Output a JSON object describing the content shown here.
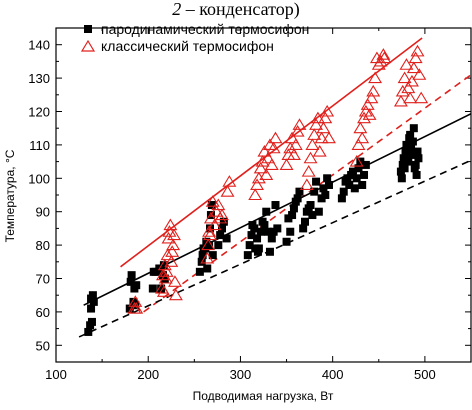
{
  "caption": {
    "number": "2",
    "text": " – конденсатор)"
  },
  "chart_data": {
    "type": "scatter",
    "xlabel": "Подводимая нагрузка, Вт",
    "ylabel": "Температура, °C",
    "xlim": [
      100,
      550
    ],
    "ylim": [
      45,
      145
    ],
    "xticks": [
      "100",
      "200",
      "300",
      "400",
      "500"
    ],
    "yticks": [
      "50",
      "60",
      "70",
      "80",
      "90",
      "100",
      "110",
      "120",
      "130",
      "140"
    ],
    "legend_position": "top-center",
    "series": [
      {
        "name": "пародинамический термосифон",
        "color": "#000000",
        "marker": "filled-square",
        "points": [
          [
            135,
            54
          ],
          [
            137,
            56
          ],
          [
            138,
            61
          ],
          [
            139,
            57
          ],
          [
            138,
            64
          ],
          [
            140,
            65
          ],
          [
            141,
            63
          ],
          [
            180,
            61
          ],
          [
            181,
            69
          ],
          [
            182,
            71
          ],
          [
            184,
            63
          ],
          [
            186,
            62
          ],
          [
            185,
            67
          ],
          [
            187,
            68
          ],
          [
            205,
            67
          ],
          [
            206,
            72
          ],
          [
            208,
            72
          ],
          [
            212,
            73
          ],
          [
            214,
            67
          ],
          [
            216,
            71
          ],
          [
            218,
            70
          ],
          [
            217,
            74
          ],
          [
            256,
            72
          ],
          [
            258,
            75
          ],
          [
            259,
            77
          ],
          [
            260,
            79
          ],
          [
            262,
            79
          ],
          [
            263,
            81
          ],
          [
            264,
            73
          ],
          [
            266,
            80
          ],
          [
            267,
            85
          ],
          [
            268,
            89
          ],
          [
            269,
            92
          ],
          [
            270,
            77
          ],
          [
            276,
            80
          ],
          [
            278,
            83
          ],
          [
            280,
            85
          ],
          [
            282,
            87
          ],
          [
            285,
            82
          ],
          [
            308,
            77
          ],
          [
            310,
            80
          ],
          [
            312,
            83
          ],
          [
            313,
            86
          ],
          [
            315,
            85
          ],
          [
            316,
            79
          ],
          [
            318,
            82
          ],
          [
            319,
            78
          ],
          [
            320,
            79
          ],
          [
            322,
            84
          ],
          [
            324,
            87
          ],
          [
            326,
            86
          ],
          [
            328,
            90
          ],
          [
            330,
            84
          ],
          [
            332,
            78
          ],
          [
            334,
            82
          ],
          [
            336,
            84
          ],
          [
            338,
            92
          ],
          [
            340,
            85
          ],
          [
            350,
            81
          ],
          [
            352,
            88
          ],
          [
            354,
            84
          ],
          [
            356,
            89
          ],
          [
            358,
            91
          ],
          [
            360,
            93
          ],
          [
            362,
            94
          ],
          [
            364,
            96
          ],
          [
            368,
            85
          ],
          [
            370,
            87
          ],
          [
            372,
            90
          ],
          [
            374,
            91
          ],
          [
            376,
            92
          ],
          [
            378,
            89
          ],
          [
            380,
            96
          ],
          [
            382,
            99
          ],
          [
            385,
            90
          ],
          [
            388,
            94
          ],
          [
            390,
            97
          ],
          [
            392,
            95
          ],
          [
            394,
            100
          ],
          [
            396,
            98
          ],
          [
            410,
            94
          ],
          [
            412,
            96
          ],
          [
            414,
            99
          ],
          [
            416,
            100
          ],
          [
            418,
            98
          ],
          [
            420,
            101
          ],
          [
            422,
            102
          ],
          [
            424,
            97
          ],
          [
            426,
            100
          ],
          [
            428,
            103
          ],
          [
            430,
            105
          ],
          [
            432,
            98
          ],
          [
            434,
            101
          ],
          [
            436,
            104
          ],
          [
            474,
            102
          ],
          [
            475,
            100
          ],
          [
            476,
            104
          ],
          [
            477,
            106
          ],
          [
            478,
            103
          ],
          [
            479,
            108
          ],
          [
            480,
            110
          ],
          [
            481,
            107
          ],
          [
            482,
            105
          ],
          [
            483,
            112
          ],
          [
            484,
            113
          ],
          [
            485,
            109
          ],
          [
            486,
            107
          ],
          [
            487,
            111
          ],
          [
            488,
            115
          ],
          [
            489,
            103
          ],
          [
            490,
            104
          ],
          [
            491,
            101
          ],
          [
            492,
            108
          ],
          [
            493,
            106
          ]
        ]
      },
      {
        "name": "классический термосифон",
        "color": "#e0201c",
        "marker": "open-triangle",
        "points": [
          [
            185,
            61
          ],
          [
            186,
            63
          ],
          [
            187,
            61
          ],
          [
            215,
            67
          ],
          [
            216,
            71
          ],
          [
            217,
            66
          ],
          [
            218,
            74
          ],
          [
            219,
            70
          ],
          [
            220,
            72
          ],
          [
            221,
            77
          ],
          [
            222,
            82
          ],
          [
            223,
            84
          ],
          [
            224,
            86
          ],
          [
            225,
            75
          ],
          [
            226,
            78
          ],
          [
            227,
            80
          ],
          [
            228,
            83
          ],
          [
            229,
            69
          ],
          [
            230,
            65
          ],
          [
            264,
            76
          ],
          [
            265,
            80
          ],
          [
            266,
            84
          ],
          [
            267,
            83
          ],
          [
            268,
            88
          ],
          [
            270,
            93
          ],
          [
            272,
            86
          ],
          [
            274,
            90
          ],
          [
            276,
            92
          ],
          [
            278,
            88
          ],
          [
            280,
            89
          ],
          [
            286,
            96
          ],
          [
            288,
            99
          ],
          [
            316,
            95
          ],
          [
            318,
            98
          ],
          [
            320,
            100
          ],
          [
            322,
            103
          ],
          [
            324,
            105
          ],
          [
            326,
            108
          ],
          [
            328,
            101
          ],
          [
            330,
            106
          ],
          [
            332,
            110
          ],
          [
            334,
            104
          ],
          [
            336,
            109
          ],
          [
            338,
            112
          ],
          [
            350,
            104
          ],
          [
            352,
            107
          ],
          [
            354,
            109
          ],
          [
            356,
            112
          ],
          [
            358,
            107
          ],
          [
            360,
            110
          ],
          [
            362,
            114
          ],
          [
            364,
            116
          ],
          [
            372,
            98
          ],
          [
            374,
            102
          ],
          [
            376,
            106
          ],
          [
            378,
            110
          ],
          [
            380,
            113
          ],
          [
            382,
            116
          ],
          [
            384,
            118
          ],
          [
            386,
            108
          ],
          [
            388,
            112
          ],
          [
            390,
            115
          ],
          [
            392,
            118
          ],
          [
            394,
            120
          ],
          [
            396,
            112
          ],
          [
            426,
            105
          ],
          [
            428,
            110
          ],
          [
            430,
            115
          ],
          [
            432,
            112
          ],
          [
            434,
            118
          ],
          [
            436,
            120
          ],
          [
            438,
            122
          ],
          [
            440,
            119
          ],
          [
            442,
            124
          ],
          [
            444,
            126
          ],
          [
            446,
            130
          ],
          [
            448,
            136
          ],
          [
            450,
            134
          ],
          [
            452,
            135
          ],
          [
            455,
            137
          ],
          [
            456,
            136
          ],
          [
            474,
            123
          ],
          [
            476,
            126
          ],
          [
            478,
            130
          ],
          [
            480,
            134
          ],
          [
            482,
            127
          ],
          [
            484,
            124
          ],
          [
            486,
            129
          ],
          [
            488,
            133
          ],
          [
            490,
            136
          ],
          [
            492,
            138
          ],
          [
            494,
            131
          ],
          [
            496,
            124
          ]
        ]
      }
    ],
    "fit_lines": [
      {
        "series": "классический термосифон",
        "style": "solid",
        "color": "#e0201c",
        "x": [
          170,
          497
        ],
        "y": [
          73.5,
          142
        ]
      },
      {
        "series": "классический термосифон",
        "style": "dashed",
        "color": "#e0201c",
        "x": [
          195,
          555
        ],
        "y": [
          60,
          132
        ]
      },
      {
        "series": "пародинамический термосифон",
        "style": "solid",
        "color": "#000000",
        "x": [
          130,
          555
        ],
        "y": [
          62,
          120
        ]
      },
      {
        "series": "пародинамический термосифон",
        "style": "dashed",
        "color": "#000000",
        "x": [
          125,
          555
        ],
        "y": [
          52.5,
          106
        ]
      }
    ]
  }
}
